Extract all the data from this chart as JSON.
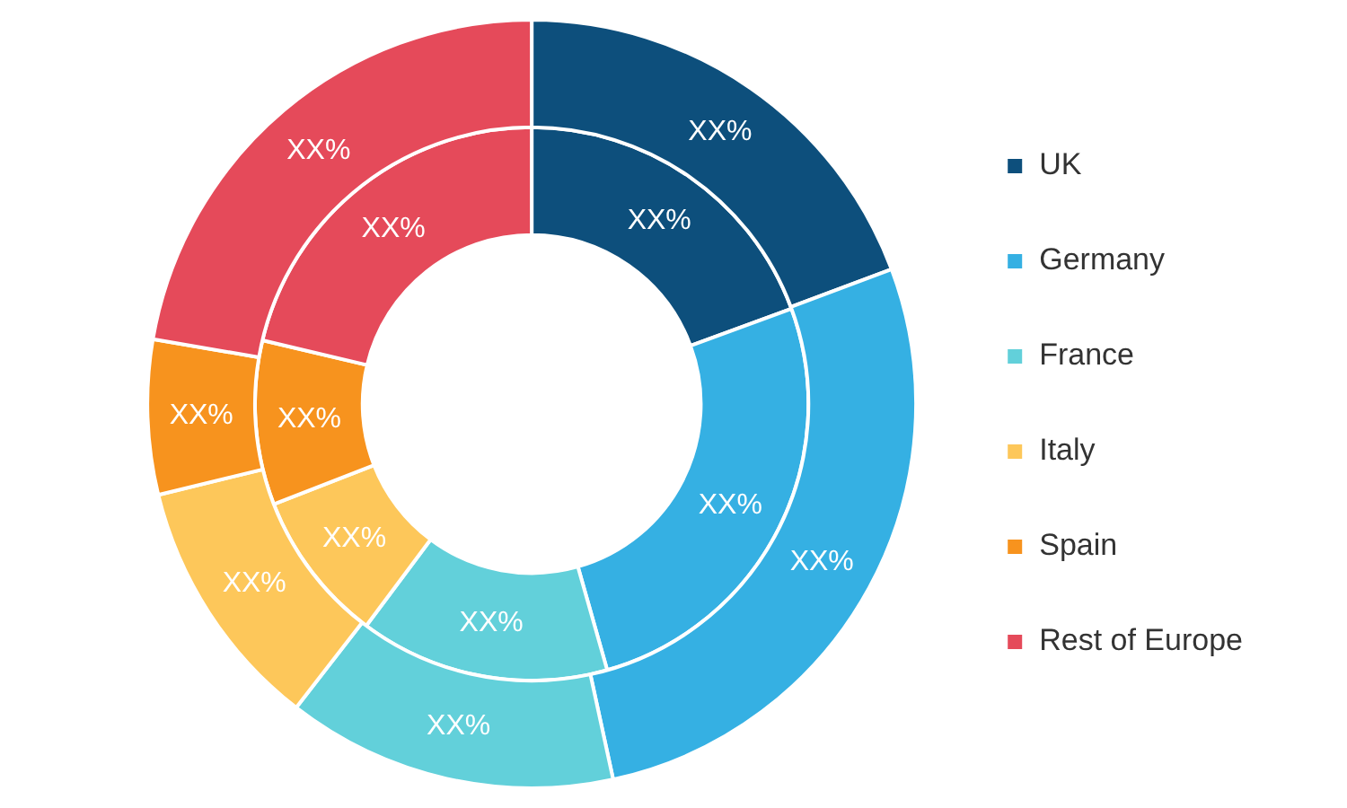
{
  "chart_data": {
    "type": "donut",
    "categories": [
      "UK",
      "Germany",
      "France",
      "Italy",
      "Spain",
      "Rest of Europe"
    ],
    "colors": [
      "#0d4f7c",
      "#35b0e3",
      "#62d0da",
      "#fdc75a",
      "#f7931e",
      "#e54a5a"
    ],
    "legend": "right",
    "series": [
      {
        "values": [
          19.3,
          27.3,
          13.9,
          10.7,
          6.5,
          22.3
        ],
        "value_labels": [
          "XX%",
          "XX%",
          "XX%",
          "XX%",
          "XX%",
          "XX%"
        ]
      },
      {
        "values": [
          19.4,
          26.2,
          14.6,
          8.9,
          9.6,
          21.3
        ],
        "value_labels": [
          "XX%",
          "XX%",
          "XX%",
          "XX%",
          "XX%",
          "XX%"
        ]
      }
    ]
  }
}
